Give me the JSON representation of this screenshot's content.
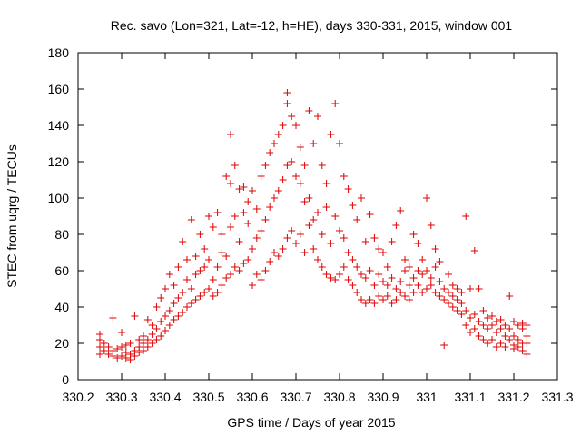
{
  "chart_data": {
    "type": "scatter",
    "title": "Rec. savo (Lon=321, Lat=-12, h=HE), days 330-331, 2015, window 001",
    "xlabel": "GPS time / Days of year 2015",
    "ylabel": "STEC from uqrg / TECUs",
    "xlim": [
      330.2,
      331.3
    ],
    "ylim": [
      0,
      180
    ],
    "xticks": [
      "330.2",
      "330.3",
      "330.4",
      "330.5",
      "330.6",
      "330.7",
      "330.8",
      "330.9",
      "331",
      "331.1",
      "331.2",
      "331.3"
    ],
    "yticks": [
      "0",
      "20",
      "40",
      "60",
      "80",
      "100",
      "120",
      "140",
      "160",
      "180"
    ],
    "grid": false,
    "marker": "+",
    "color": "#dd0000",
    "series": [
      {
        "points": [
          [
            330.25,
            25
          ],
          [
            330.25,
            22
          ],
          [
            330.25,
            18
          ],
          [
            330.25,
            14
          ],
          [
            330.26,
            20
          ],
          [
            330.26,
            16
          ],
          [
            330.27,
            18
          ],
          [
            330.27,
            14
          ],
          [
            330.28,
            13
          ],
          [
            330.28,
            16
          ],
          [
            330.28,
            34
          ],
          [
            330.29,
            17
          ],
          [
            330.29,
            12
          ],
          [
            330.3,
            13
          ],
          [
            330.3,
            18
          ],
          [
            330.3,
            26
          ],
          [
            330.31,
            12
          ],
          [
            330.31,
            15
          ],
          [
            330.31,
            19
          ],
          [
            330.32,
            11
          ],
          [
            330.32,
            14
          ],
          [
            330.32,
            20
          ],
          [
            330.33,
            13
          ],
          [
            330.33,
            16
          ],
          [
            330.33,
            35
          ],
          [
            330.34,
            15
          ],
          [
            330.34,
            18
          ],
          [
            330.34,
            22
          ],
          [
            330.35,
            16
          ],
          [
            330.35,
            20
          ],
          [
            330.35,
            24
          ],
          [
            330.36,
            18
          ],
          [
            330.36,
            22
          ],
          [
            330.36,
            33
          ],
          [
            330.37,
            20
          ],
          [
            330.37,
            25
          ],
          [
            330.37,
            30
          ],
          [
            330.38,
            22
          ],
          [
            330.38,
            28
          ],
          [
            330.38,
            40
          ],
          [
            330.39,
            24
          ],
          [
            330.39,
            32
          ],
          [
            330.39,
            45
          ],
          [
            330.4,
            27
          ],
          [
            330.4,
            35
          ],
          [
            330.4,
            50
          ],
          [
            330.41,
            30
          ],
          [
            330.41,
            38
          ],
          [
            330.41,
            58
          ],
          [
            330.42,
            33
          ],
          [
            330.42,
            42
          ],
          [
            330.42,
            52
          ],
          [
            330.43,
            35
          ],
          [
            330.43,
            45
          ],
          [
            330.43,
            62
          ],
          [
            330.44,
            37
          ],
          [
            330.44,
            48
          ],
          [
            330.44,
            76
          ],
          [
            330.45,
            40
          ],
          [
            330.45,
            55
          ],
          [
            330.45,
            66
          ],
          [
            330.46,
            42
          ],
          [
            330.46,
            50
          ],
          [
            330.46,
            88
          ],
          [
            330.47,
            44
          ],
          [
            330.47,
            58
          ],
          [
            330.47,
            68
          ],
          [
            330.48,
            46
          ],
          [
            330.48,
            60
          ],
          [
            330.48,
            80
          ],
          [
            330.49,
            48
          ],
          [
            330.49,
            62
          ],
          [
            330.49,
            72
          ],
          [
            330.5,
            50
          ],
          [
            330.5,
            66
          ],
          [
            330.5,
            90
          ],
          [
            330.51,
            46
          ],
          [
            330.51,
            55
          ],
          [
            330.51,
            84
          ],
          [
            330.52,
            48
          ],
          [
            330.52,
            62
          ],
          [
            330.52,
            92
          ],
          [
            330.53,
            52
          ],
          [
            330.53,
            70
          ],
          [
            330.53,
            80
          ],
          [
            330.54,
            56
          ],
          [
            330.54,
            68
          ],
          [
            330.54,
            112
          ],
          [
            330.55,
            58
          ],
          [
            330.55,
            84
          ],
          [
            330.55,
            108
          ],
          [
            330.55,
            135
          ],
          [
            330.56,
            62
          ],
          [
            330.56,
            90
          ],
          [
            330.56,
            118
          ],
          [
            330.57,
            60
          ],
          [
            330.57,
            76
          ],
          [
            330.57,
            105
          ],
          [
            330.58,
            64
          ],
          [
            330.58,
            92
          ],
          [
            330.58,
            106
          ],
          [
            330.59,
            66
          ],
          [
            330.59,
            86
          ],
          [
            330.59,
            98
          ],
          [
            330.6,
            52
          ],
          [
            330.6,
            72
          ],
          [
            330.6,
            104
          ],
          [
            330.61,
            58
          ],
          [
            330.61,
            78
          ],
          [
            330.61,
            94
          ],
          [
            330.62,
            55
          ],
          [
            330.62,
            82
          ],
          [
            330.62,
            112
          ],
          [
            330.63,
            60
          ],
          [
            330.63,
            88
          ],
          [
            330.63,
            118
          ],
          [
            330.64,
            65
          ],
          [
            330.64,
            95
          ],
          [
            330.64,
            125
          ],
          [
            330.65,
            70
          ],
          [
            330.65,
            100
          ],
          [
            330.65,
            130
          ],
          [
            330.66,
            68
          ],
          [
            330.66,
            104
          ],
          [
            330.66,
            135
          ],
          [
            330.67,
            72
          ],
          [
            330.67,
            110
          ],
          [
            330.67,
            140
          ],
          [
            330.68,
            78
          ],
          [
            330.68,
            118
          ],
          [
            330.68,
            158
          ],
          [
            330.68,
            152
          ],
          [
            330.69,
            82
          ],
          [
            330.69,
            120
          ],
          [
            330.69,
            145
          ],
          [
            330.7,
            75
          ],
          [
            330.7,
            112
          ],
          [
            330.7,
            140
          ],
          [
            330.71,
            80
          ],
          [
            330.71,
            108
          ],
          [
            330.71,
            128
          ],
          [
            330.72,
            70
          ],
          [
            330.72,
            98
          ],
          [
            330.72,
            118
          ],
          [
            330.73,
            85
          ],
          [
            330.73,
            100
          ],
          [
            330.73,
            148
          ],
          [
            330.74,
            72
          ],
          [
            330.74,
            88
          ],
          [
            330.74,
            130
          ],
          [
            330.75,
            66
          ],
          [
            330.75,
            92
          ],
          [
            330.75,
            145
          ],
          [
            330.76,
            62
          ],
          [
            330.76,
            80
          ],
          [
            330.76,
            118
          ],
          [
            330.77,
            58
          ],
          [
            330.77,
            95
          ],
          [
            330.77,
            108
          ],
          [
            330.78,
            56
          ],
          [
            330.78,
            75
          ],
          [
            330.78,
            135
          ],
          [
            330.79,
            55
          ],
          [
            330.79,
            90
          ],
          [
            330.79,
            152
          ],
          [
            330.8,
            58
          ],
          [
            330.8,
            82
          ],
          [
            330.8,
            130
          ],
          [
            330.81,
            62
          ],
          [
            330.81,
            78
          ],
          [
            330.81,
            112
          ],
          [
            330.82,
            55
          ],
          [
            330.82,
            70
          ],
          [
            330.82,
            105
          ],
          [
            330.83,
            52
          ],
          [
            330.83,
            66
          ],
          [
            330.83,
            96
          ],
          [
            330.84,
            48
          ],
          [
            330.84,
            62
          ],
          [
            330.84,
            88
          ],
          [
            330.85,
            44
          ],
          [
            330.85,
            58
          ],
          [
            330.85,
            100
          ],
          [
            330.86,
            42
          ],
          [
            330.86,
            56
          ],
          [
            330.86,
            76
          ],
          [
            330.87,
            44
          ],
          [
            330.87,
            60
          ],
          [
            330.87,
            91
          ],
          [
            330.88,
            42
          ],
          [
            330.88,
            52
          ],
          [
            330.88,
            78
          ],
          [
            330.89,
            46
          ],
          [
            330.89,
            58
          ],
          [
            330.89,
            72
          ],
          [
            330.9,
            44
          ],
          [
            330.9,
            54
          ],
          [
            330.9,
            70
          ],
          [
            330.91,
            46
          ],
          [
            330.91,
            52
          ],
          [
            330.91,
            62
          ],
          [
            330.92,
            42
          ],
          [
            330.92,
            56
          ],
          [
            330.92,
            76
          ],
          [
            330.93,
            44
          ],
          [
            330.93,
            50
          ],
          [
            330.93,
            85
          ],
          [
            330.94,
            48
          ],
          [
            330.94,
            54
          ],
          [
            330.94,
            93
          ],
          [
            330.95,
            46
          ],
          [
            330.95,
            60
          ],
          [
            330.95,
            66
          ],
          [
            330.96,
            44
          ],
          [
            330.96,
            52
          ],
          [
            330.96,
            62
          ],
          [
            330.97,
            48
          ],
          [
            330.97,
            56
          ],
          [
            330.97,
            80
          ],
          [
            330.98,
            52
          ],
          [
            330.98,
            60
          ],
          [
            330.98,
            75
          ],
          [
            330.99,
            48
          ],
          [
            330.99,
            58
          ],
          [
            330.99,
            66
          ],
          [
            331.0,
            50
          ],
          [
            331.0,
            60
          ],
          [
            331.0,
            100
          ],
          [
            331.01,
            52
          ],
          [
            331.01,
            56
          ],
          [
            331.01,
            85
          ],
          [
            331.02,
            48
          ],
          [
            331.02,
            62
          ],
          [
            331.02,
            72
          ],
          [
            331.03,
            46
          ],
          [
            331.03,
            54
          ],
          [
            331.03,
            65
          ],
          [
            331.04,
            44
          ],
          [
            331.04,
            50
          ],
          [
            331.04,
            19
          ],
          [
            331.05,
            42
          ],
          [
            331.05,
            48
          ],
          [
            331.05,
            58
          ],
          [
            331.06,
            40
          ],
          [
            331.06,
            46
          ],
          [
            331.06,
            52
          ],
          [
            331.07,
            38
          ],
          [
            331.07,
            44
          ],
          [
            331.07,
            50
          ],
          [
            331.08,
            36
          ],
          [
            331.08,
            42
          ],
          [
            331.08,
            48
          ],
          [
            331.09,
            30
          ],
          [
            331.09,
            38
          ],
          [
            331.09,
            90
          ],
          [
            331.1,
            26
          ],
          [
            331.1,
            34
          ],
          [
            331.1,
            50
          ],
          [
            331.11,
            28
          ],
          [
            331.11,
            36
          ],
          [
            331.11,
            71
          ],
          [
            331.12,
            24
          ],
          [
            331.12,
            32
          ],
          [
            331.12,
            50
          ],
          [
            331.13,
            22
          ],
          [
            331.13,
            30
          ],
          [
            331.13,
            38
          ],
          [
            331.14,
            20
          ],
          [
            331.14,
            28
          ],
          [
            331.14,
            34
          ],
          [
            331.15,
            22
          ],
          [
            331.15,
            30
          ],
          [
            331.15,
            35
          ],
          [
            331.16,
            18
          ],
          [
            331.16,
            26
          ],
          [
            331.16,
            32
          ],
          [
            331.17,
            20
          ],
          [
            331.17,
            28
          ],
          [
            331.17,
            33
          ],
          [
            331.18,
            18
          ],
          [
            331.18,
            24
          ],
          [
            331.18,
            30
          ],
          [
            331.19,
            22
          ],
          [
            331.19,
            28
          ],
          [
            331.19,
            46
          ],
          [
            331.2,
            17
          ],
          [
            331.2,
            24
          ],
          [
            331.2,
            32
          ],
          [
            331.21,
            18
          ],
          [
            331.21,
            22
          ],
          [
            331.21,
            30
          ],
          [
            331.22,
            16
          ],
          [
            331.22,
            20
          ],
          [
            331.22,
            28
          ],
          [
            331.23,
            14
          ],
          [
            331.23,
            20
          ],
          [
            331.23,
            30
          ],
          [
            331.23,
            24
          ],
          [
            331.22,
            31
          ],
          [
            331.2,
            19
          ]
        ]
      }
    ]
  }
}
